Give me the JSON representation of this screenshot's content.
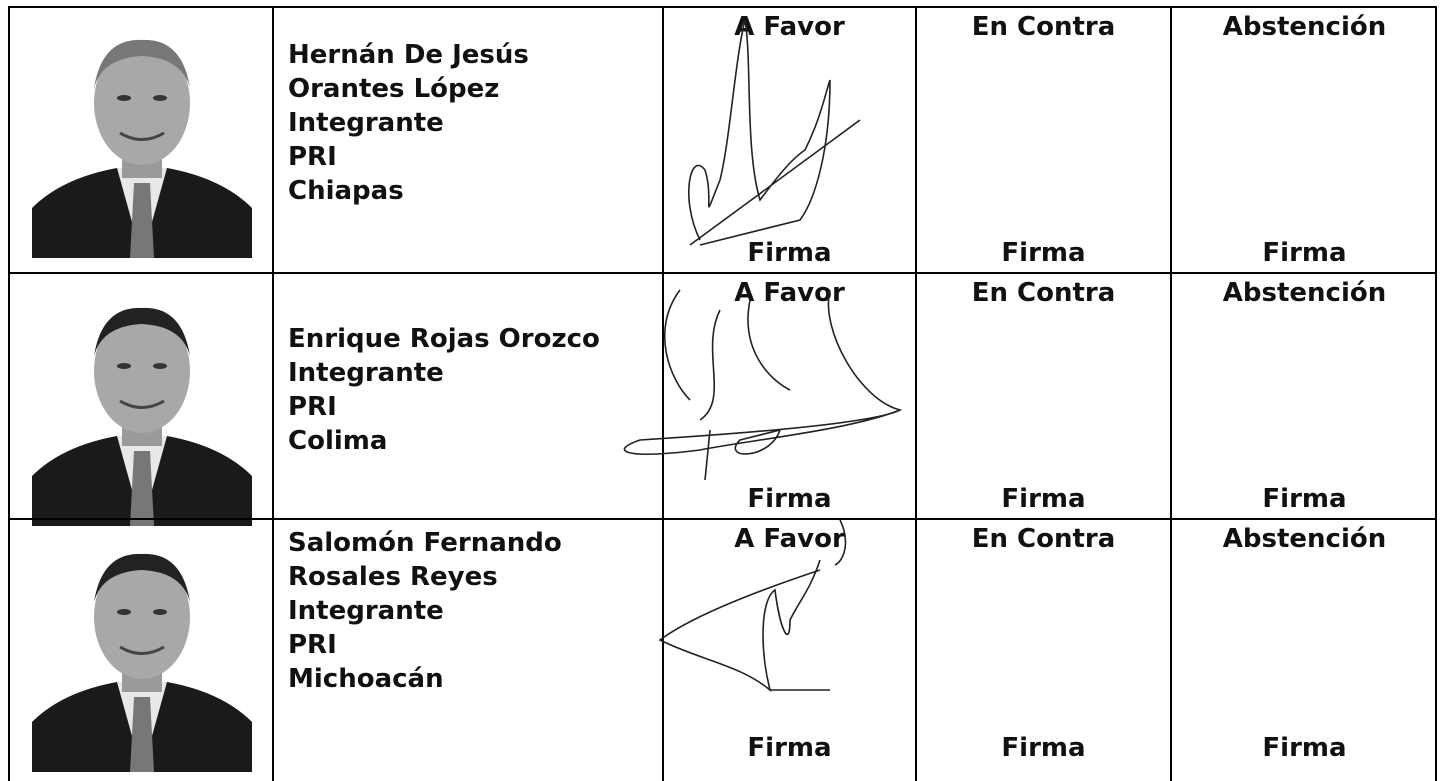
{
  "table": {
    "rows": [
      {
        "name_lines": [
          "Hernán De Jesús",
          "Orantes López",
          "Integrante",
          "PRI",
          "Chiapas"
        ],
        "votes": [
          {
            "label": "A Favor",
            "sign": "Firma"
          },
          {
            "label": "En Contra",
            "sign": "Firma"
          },
          {
            "label": "Abstención",
            "sign": "Firma"
          }
        ]
      },
      {
        "name_lines": [
          "Enrique Rojas Orozco",
          "Integrante",
          "PRI",
          "Colima"
        ],
        "votes": [
          {
            "label": "A Favor",
            "sign": "Firma"
          },
          {
            "label": "En Contra",
            "sign": "Firma"
          },
          {
            "label": "Abstención",
            "sign": "Firma"
          }
        ]
      },
      {
        "name_lines": [
          "Salomón Fernando",
          "Rosales Reyes",
          "Integrante",
          "PRI",
          "Michoacán"
        ],
        "votes": [
          {
            "label": "A Favor",
            "sign": "Firma"
          },
          {
            "label": "En Contra",
            "sign": "Firma"
          },
          {
            "label": "Abstención",
            "sign": "Firma"
          }
        ]
      }
    ]
  }
}
